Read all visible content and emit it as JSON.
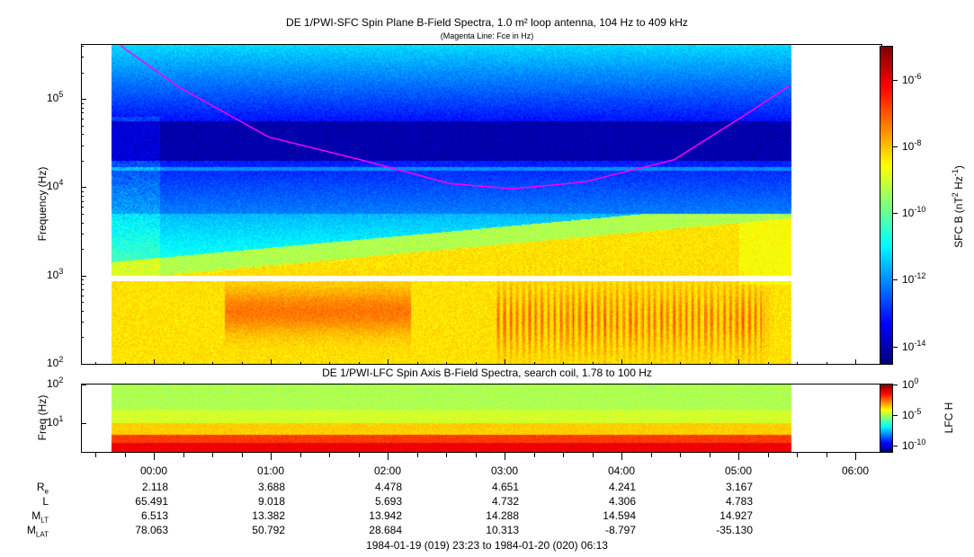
{
  "chart_data": [
    {
      "type": "heatmap",
      "title": "DE 1/PWI-SFC  Spin Plane B-Field Spectra, 1.0 m² loop antenna, 104 Hz to 409 kHz",
      "subtitle": "(Magenta Line: Fce in Hz)",
      "ylabel": "Frequency (Hz)",
      "yscale": "log",
      "ylim": [
        100,
        409000
      ],
      "y_ticks": [
        {
          "base": "10",
          "exp": "2"
        },
        {
          "base": "10",
          "exp": "3"
        },
        {
          "base": "10",
          "exp": "4"
        },
        {
          "base": "10",
          "exp": "5"
        }
      ],
      "colorbar": {
        "label": "SFC B (nT",
        "label_sup1": "2",
        "label_mid": " Hz",
        "label_sup2": "-1",
        "label_end": ")",
        "scale": "log",
        "range": [
          3e-15,
          1e-05
        ],
        "colormap": "jet",
        "ticks": [
          {
            "base": "10",
            "exp": "-6"
          },
          {
            "base": "10",
            "exp": "-8"
          },
          {
            "base": "10",
            "exp": "-10"
          },
          {
            "base": "10",
            "exp": "-12"
          },
          {
            "base": "10",
            "exp": "-14"
          }
        ]
      },
      "overlay_line": {
        "name": "Fce",
        "color": "#ff00ff",
        "times": [
          "23:43",
          "00:13",
          "00:59",
          "01:46",
          "02:32",
          "03:04",
          "03:41",
          "04:27",
          "05:04",
          "05:26"
        ],
        "values_hz": [
          400000,
          136000,
          37000,
          20500,
          11000,
          9600,
          11500,
          20500,
          67000,
          140000
        ]
      }
    },
    {
      "type": "heatmap",
      "title": "DE 1/PWI-LFC  Spin Axis B-Field Spectra, search coil, 1.78 to 100 Hz",
      "ylabel": "Freq (Hz)",
      "yscale": "log",
      "ylim": [
        1.78,
        100
      ],
      "y_ticks": [
        {
          "base": "10",
          "exp": "1"
        },
        {
          "base": "10",
          "exp": "2"
        }
      ],
      "colorbar": {
        "label": "LFC H",
        "scale": "log",
        "range": [
          1e-11,
          1
        ],
        "colormap": "jet",
        "ticks": [
          {
            "base": "10",
            "exp": "0"
          },
          {
            "base": "10",
            "exp": "-5"
          },
          {
            "base": "10",
            "exp": "-10"
          }
        ]
      }
    }
  ],
  "x_axis": {
    "range": [
      "1984-01-19 23:23",
      "1984-01-20 06:13"
    ],
    "data_span": [
      "23:38",
      "05:27"
    ],
    "tick_labels": [
      "00:00",
      "01:00",
      "02:00",
      "03:00",
      "04:00",
      "05:00",
      "06:00"
    ]
  },
  "ephemeris": {
    "rows": [
      {
        "label": "R",
        "sub": "e",
        "values": [
          "2.118",
          "3.688",
          "4.478",
          "4.651",
          "4.241",
          "3.167"
        ]
      },
      {
        "label": "L",
        "sub": "",
        "values": [
          "65.491",
          "9.018",
          "5.693",
          "4.732",
          "4.306",
          "4.783"
        ]
      },
      {
        "label": "M",
        "sub": "LT",
        "values": [
          "6.513",
          "13.382",
          "13.942",
          "14.288",
          "14.594",
          "14.927"
        ]
      },
      {
        "label": "M",
        "sub": "LAT",
        "values": [
          "78.063",
          "50.792",
          "28.684",
          "10.313",
          "-8.797",
          "-35.130"
        ]
      }
    ]
  },
  "footer": "1984-01-19 (019) 23:23 to 1984-01-20 (020) 06:13"
}
